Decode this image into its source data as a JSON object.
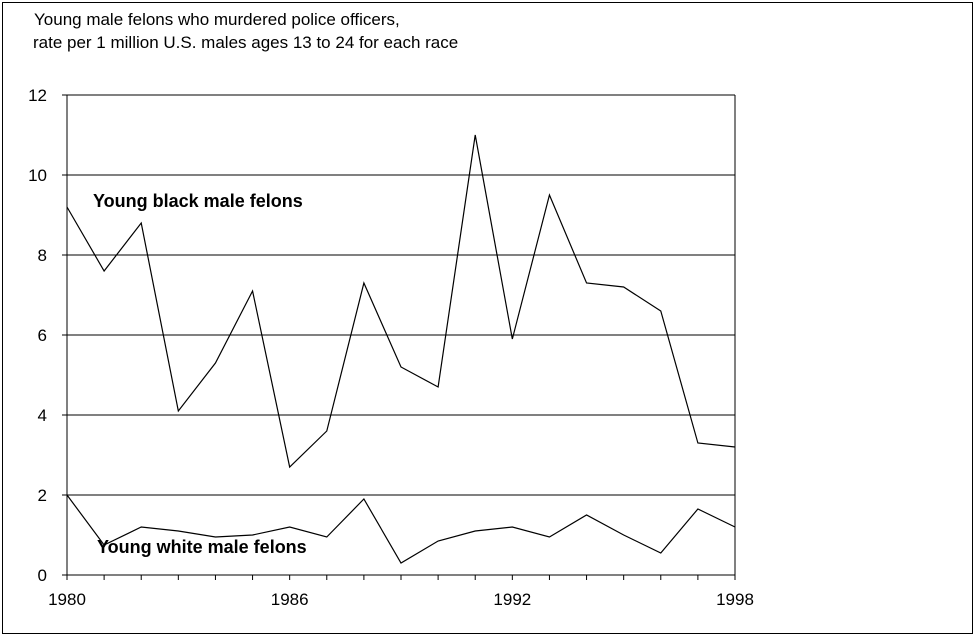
{
  "chart_data": {
    "type": "line",
    "title_lines": [
      "Young male felons who murdered police officers,",
      "rate per 1 million U.S. males ages 13 to 24 for each race"
    ],
    "xlabel": "",
    "ylabel": "",
    "xlim": [
      1980,
      1998
    ],
    "ylim": [
      0,
      12
    ],
    "y_ticks": [
      0,
      2,
      4,
      6,
      8,
      10,
      12
    ],
    "x_tick_labels": [
      "1980",
      "1986",
      "1992",
      "1998"
    ],
    "x_tick_values": [
      1980,
      1986,
      1992,
      1998
    ],
    "grid": "horizontal",
    "x": [
      1980,
      1981,
      1982,
      1983,
      1984,
      1985,
      1986,
      1987,
      1988,
      1989,
      1990,
      1991,
      1992,
      1993,
      1994,
      1995,
      1996,
      1997,
      1998
    ],
    "series": [
      {
        "name": "Young black male felons",
        "values": [
          9.2,
          7.6,
          8.8,
          4.1,
          5.3,
          7.1,
          2.7,
          3.6,
          7.3,
          5.2,
          4.7,
          11.0,
          5.9,
          9.5,
          7.3,
          7.2,
          6.6,
          3.3,
          3.2
        ],
        "color": "#000000"
      },
      {
        "name": "Young white male felons",
        "values": [
          2.0,
          0.75,
          1.2,
          1.1,
          0.95,
          1.0,
          1.2,
          0.95,
          1.9,
          0.3,
          0.85,
          1.1,
          1.2,
          0.95,
          1.5,
          1.0,
          0.55,
          1.65,
          1.2
        ],
        "color": "#000000"
      }
    ]
  }
}
